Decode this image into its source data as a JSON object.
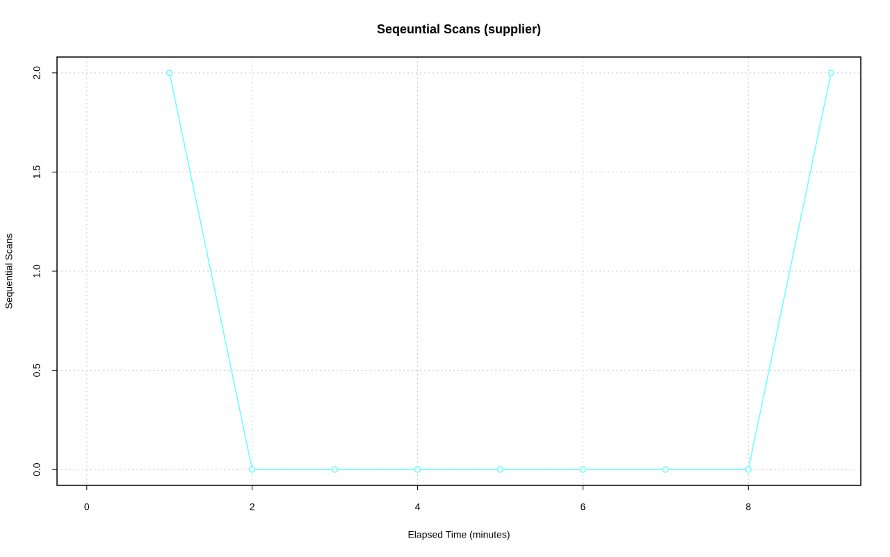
{
  "chart_data": {
    "type": "line",
    "title": "Seqeuntial Scans (supplier)",
    "x_label": "Elapsed Time (minutes)",
    "y_label": "Sequential Scans",
    "x": [
      1,
      2,
      3,
      4,
      5,
      6,
      7,
      8,
      9
    ],
    "series": [
      {
        "name": "supplier",
        "color": "#66ffff",
        "values": [
          2,
          0,
          0,
          0,
          0,
          0,
          0,
          0,
          2
        ]
      }
    ],
    "xlim": [
      -0.36,
      9.36
    ],
    "xticks": [
      0,
      2,
      4,
      6,
      8
    ],
    "ylim": [
      -0.08,
      2.08
    ],
    "yticks": [
      {
        "value": 0,
        "label": "0.0"
      },
      {
        "value": 0.5,
        "label": "0.5"
      },
      {
        "value": 1,
        "label": "1.0"
      },
      {
        "value": 1.5,
        "label": "1.5"
      },
      {
        "value": 2,
        "label": "2.0"
      }
    ],
    "grid": true
  }
}
